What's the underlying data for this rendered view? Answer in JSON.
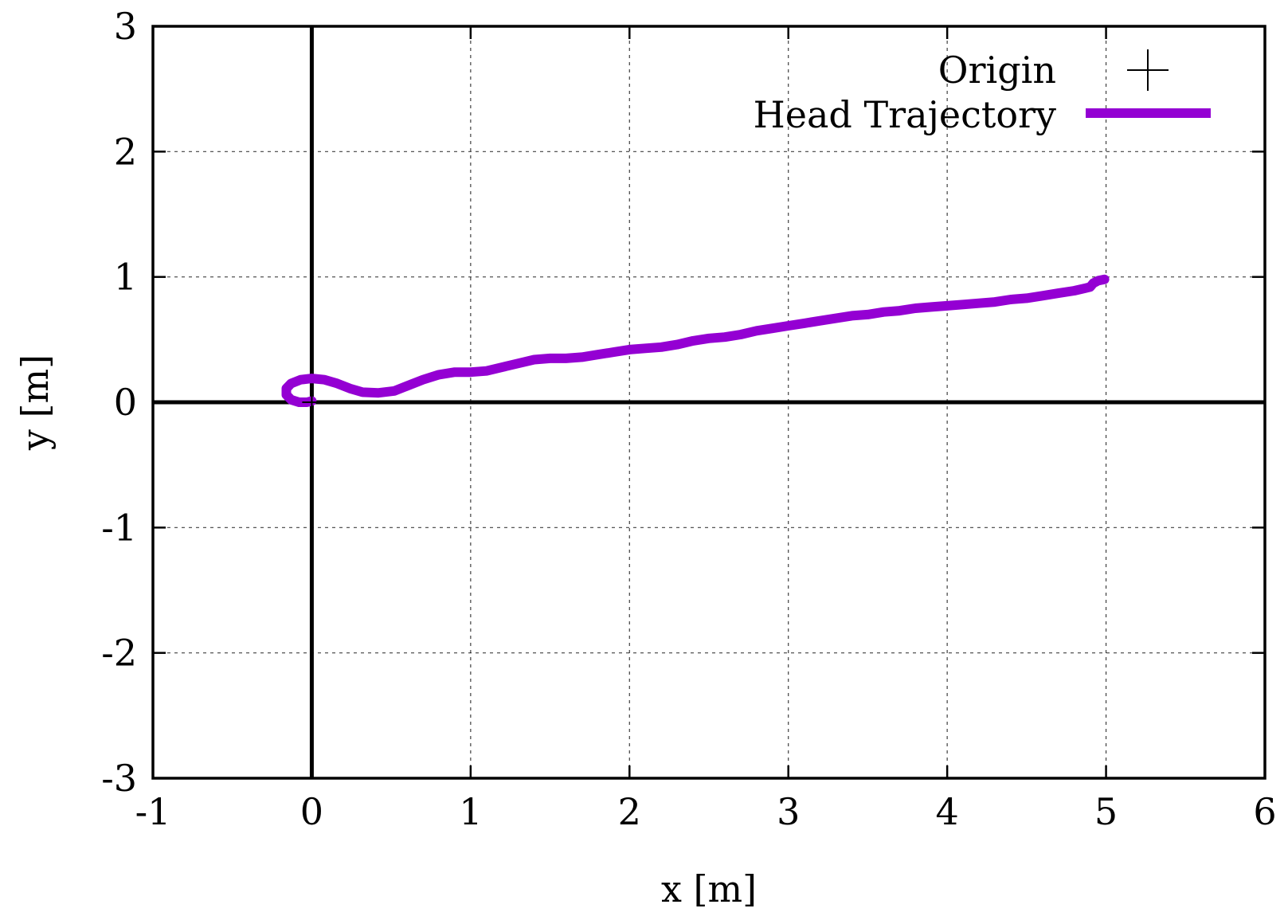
{
  "chart_data": {
    "type": "line",
    "title": "",
    "xlabel": "x [m]",
    "ylabel": "y [m]",
    "xlim": [
      -1,
      6
    ],
    "ylim": [
      -3,
      3
    ],
    "xticks": [
      -1,
      0,
      1,
      2,
      3,
      4,
      5,
      6
    ],
    "yticks": [
      -3,
      -2,
      -1,
      0,
      1,
      2,
      3
    ],
    "grid": true,
    "legend_position": "top-right",
    "colors": {
      "trajectory": "#9400d3",
      "axes": "#000000"
    },
    "series": [
      {
        "name": "Origin",
        "marker": "plus",
        "points": [
          [
            0,
            0
          ]
        ]
      },
      {
        "name": "Head Trajectory",
        "points": [
          [
            0.0,
            0.01
          ],
          [
            -0.03,
            0.0
          ],
          [
            -0.08,
            0.0
          ],
          [
            -0.13,
            0.02
          ],
          [
            -0.16,
            0.06
          ],
          [
            -0.16,
            0.11
          ],
          [
            -0.13,
            0.15
          ],
          [
            -0.07,
            0.18
          ],
          [
            0.0,
            0.19
          ],
          [
            0.08,
            0.18
          ],
          [
            0.16,
            0.15
          ],
          [
            0.24,
            0.11
          ],
          [
            0.32,
            0.08
          ],
          [
            0.42,
            0.075
          ],
          [
            0.52,
            0.09
          ],
          [
            0.6,
            0.13
          ],
          [
            0.7,
            0.18
          ],
          [
            0.8,
            0.22
          ],
          [
            0.9,
            0.24
          ],
          [
            1.0,
            0.24
          ],
          [
            1.1,
            0.25
          ],
          [
            1.2,
            0.28
          ],
          [
            1.3,
            0.31
          ],
          [
            1.4,
            0.34
          ],
          [
            1.5,
            0.35
          ],
          [
            1.6,
            0.35
          ],
          [
            1.7,
            0.36
          ],
          [
            1.8,
            0.38
          ],
          [
            1.9,
            0.4
          ],
          [
            2.0,
            0.42
          ],
          [
            2.1,
            0.43
          ],
          [
            2.2,
            0.44
          ],
          [
            2.3,
            0.46
          ],
          [
            2.4,
            0.49
          ],
          [
            2.5,
            0.51
          ],
          [
            2.6,
            0.52
          ],
          [
            2.7,
            0.54
          ],
          [
            2.8,
            0.57
          ],
          [
            2.9,
            0.59
          ],
          [
            3.0,
            0.61
          ],
          [
            3.1,
            0.63
          ],
          [
            3.2,
            0.65
          ],
          [
            3.3,
            0.67
          ],
          [
            3.4,
            0.69
          ],
          [
            3.5,
            0.7
          ],
          [
            3.6,
            0.72
          ],
          [
            3.7,
            0.73
          ],
          [
            3.8,
            0.75
          ],
          [
            3.9,
            0.76
          ],
          [
            4.0,
            0.77
          ],
          [
            4.1,
            0.78
          ],
          [
            4.2,
            0.79
          ],
          [
            4.3,
            0.8
          ],
          [
            4.4,
            0.82
          ],
          [
            4.5,
            0.83
          ],
          [
            4.6,
            0.85
          ],
          [
            4.7,
            0.87
          ],
          [
            4.8,
            0.89
          ],
          [
            4.87,
            0.91
          ],
          [
            4.9,
            0.92
          ],
          [
            4.92,
            0.95
          ],
          [
            4.95,
            0.97
          ],
          [
            4.99,
            0.98
          ]
        ]
      }
    ]
  }
}
